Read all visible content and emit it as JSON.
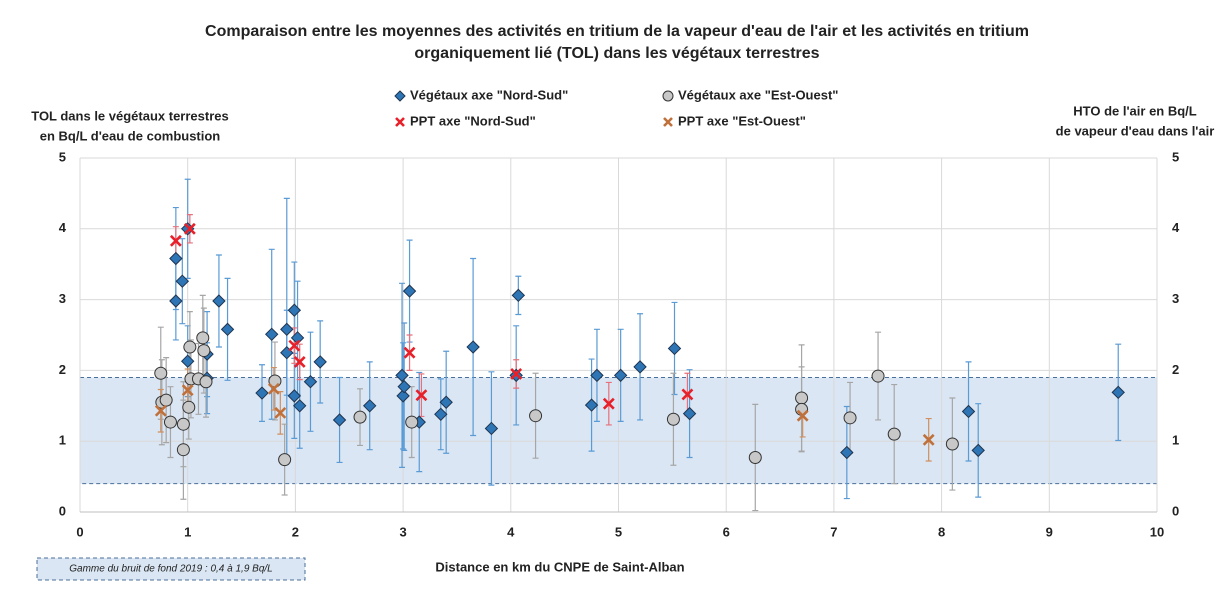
{
  "chart_data": {
    "type": "scatter",
    "title": [
      "Comparaison entre les moyennes des activités en tritium de la vapeur d'eau de l'air et les activités en tritium",
      "organiquement lié (TOL) dans les végétaux terrestres"
    ],
    "ylabel": [
      "TOL dans le végétaux terrestres",
      "en  Bq/L d'eau de combustion"
    ],
    "y2label": [
      "HTO de l'air en Bq/L",
      "de vapeur d'eau dans l'air"
    ],
    "xlabel": "Distance en km du CNPE de Saint-Alban",
    "xlim": [
      0,
      10
    ],
    "xticks": [
      0,
      1,
      2,
      3,
      4,
      5,
      6,
      7,
      8,
      9,
      10
    ],
    "ylim": [
      0,
      5
    ],
    "yticks": [
      0,
      1,
      2,
      3,
      4,
      5
    ],
    "y2lim": [
      0,
      5
    ],
    "y2ticks": [
      0,
      1,
      2,
      3,
      4,
      5
    ],
    "grid": true,
    "legend": "top",
    "band": [
      0.4,
      1.9
    ],
    "band_color": "#dae6f3",
    "band_label": "Gamme du bruit de fond 2019 : 0,4 à 1,9 Bq/L",
    "series": [
      {
        "name": "Végétaux axe \"Nord-Sud\"",
        "marker": "diamond",
        "color": "#2e75b6",
        "error_color": "#5b9bd5",
        "x": [
          0.89,
          0.89,
          0.95,
          1.0,
          1.0,
          1.18,
          1.18,
          1.29,
          1.37,
          1.78,
          1.92,
          1.92,
          1.99,
          2.02,
          1.99,
          2.04,
          2.14,
          2.23,
          1.69,
          2.41,
          2.69,
          2.99,
          3.0,
          3.01,
          3.06,
          3.15,
          3.35,
          3.4,
          3.65,
          3.82,
          4.07,
          4.05,
          4.75,
          4.8,
          5.02,
          5.2,
          5.52,
          5.66,
          7.12,
          8.25,
          8.34,
          9.64
        ],
        "y": [
          3.58,
          2.98,
          3.26,
          4.0,
          2.13,
          2.23,
          1.89,
          2.98,
          2.58,
          2.51,
          2.58,
          2.25,
          2.85,
          2.46,
          1.64,
          1.5,
          1.84,
          2.12,
          1.68,
          1.3,
          1.5,
          1.93,
          1.64,
          1.77,
          3.12,
          1.27,
          1.38,
          1.55,
          2.33,
          1.18,
          3.06,
          1.93,
          1.51,
          1.93,
          1.93,
          2.05,
          2.31,
          1.39,
          0.84,
          1.42,
          0.87,
          1.69
        ],
        "errors": [
          0.72,
          0.55,
          0.6,
          0.7,
          0.5,
          0.6,
          0.5,
          0.65,
          0.72,
          1.2,
          1.85,
          0.6,
          0.68,
          0.8,
          0.6,
          0.6,
          0.7,
          0.58,
          0.4,
          0.6,
          0.62,
          1.3,
          0.75,
          0.9,
          0.72,
          0.7,
          0.5,
          0.72,
          1.25,
          0.8,
          0.27,
          0.7,
          0.65,
          0.65,
          0.65,
          0.75,
          0.65,
          0.62,
          0.65,
          0.7,
          0.66,
          0.68
        ]
      },
      {
        "name": "Végétaux axe \"Est-Ouest\"",
        "marker": "circle",
        "color": "#c8c8c8",
        "error_color": "#a6a6a6",
        "x": [
          0.75,
          0.76,
          0.8,
          0.84,
          0.96,
          0.96,
          1.01,
          1.02,
          1.03,
          1.1,
          1.14,
          1.15,
          1.17,
          1.81,
          1.9,
          2.6,
          3.08,
          4.23,
          5.51,
          6.27,
          6.7,
          6.7,
          7.41,
          7.15,
          7.56,
          8.1
        ],
        "y": [
          1.96,
          1.55,
          1.58,
          1.27,
          1.24,
          0.88,
          1.48,
          2.33,
          1.88,
          1.88,
          2.46,
          2.28,
          1.84,
          1.85,
          0.74,
          1.34,
          1.27,
          1.36,
          1.31,
          0.77,
          1.61,
          1.45,
          1.92,
          1.33,
          1.1,
          0.96
        ],
        "errors": [
          0.65,
          0.6,
          0.6,
          0.5,
          0.6,
          0.7,
          0.45,
          0.5,
          0.55,
          0.5,
          0.6,
          0.6,
          0.5,
          0.55,
          0.5,
          0.4,
          0.5,
          0.6,
          0.65,
          0.75,
          0.75,
          0.6,
          0.62,
          0.5,
          0.7,
          0.65
        ]
      },
      {
        "name": "PPT axe \"Nord-Sud\"",
        "marker": "x",
        "color": "#e8202a",
        "error_color": "#e8707a",
        "axis": "y2",
        "x": [
          0.89,
          1.02,
          1.99,
          2.04,
          3.06,
          3.17,
          4.05,
          4.91,
          5.64
        ],
        "y": [
          3.83,
          4.0,
          2.35,
          2.12,
          2.25,
          1.65,
          1.95,
          1.53,
          1.66
        ],
        "errors": [
          0.2,
          0.2,
          0.25,
          0.25,
          0.25,
          0.3,
          0.2,
          0.3,
          0.3
        ]
      },
      {
        "name": "PPT axe \"Est-Ouest\"",
        "marker": "x",
        "color": "#c0703a",
        "error_color": "#d09060",
        "axis": "y2",
        "x": [
          0.75,
          1.0,
          1.8,
          1.86,
          6.71,
          7.88
        ],
        "y": [
          1.43,
          1.72,
          1.74,
          1.4,
          1.36,
          1.02
        ],
        "errors": [
          0.3,
          0.3,
          0.3,
          0.3,
          0.3,
          0.3
        ]
      }
    ]
  }
}
